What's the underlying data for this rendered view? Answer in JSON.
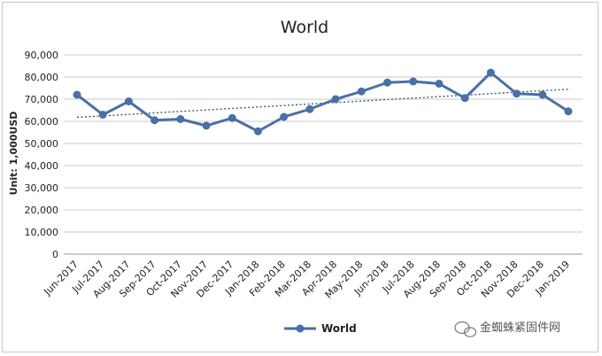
{
  "chart_data": {
    "type": "line",
    "title": "World",
    "ylabel": "Unit: 1,000USD",
    "xlabel": "",
    "ylim": [
      0,
      90000
    ],
    "yticks": [
      0,
      10000,
      20000,
      30000,
      40000,
      50000,
      60000,
      70000,
      80000,
      90000
    ],
    "ytick_labels": [
      "0",
      "10,000",
      "20,000",
      "30,000",
      "40,000",
      "50,000",
      "60,000",
      "70,000",
      "80,000",
      "90,000"
    ],
    "categories": [
      "Jun-2017",
      "Jul-2017",
      "Aug-2017",
      "Sep-2017",
      "Oct-2017",
      "Nov-2017",
      "Dec-2017",
      "Jan-2018",
      "Feb-2018",
      "Mar-2018",
      "Apr-2018",
      "May-2018",
      "Jun-2018",
      "Jul-2018",
      "Aug-2018",
      "Sep-2018",
      "Oct-2018",
      "Nov-2018",
      "Dec-2018",
      "Jan-2019"
    ],
    "series": [
      {
        "name": "World",
        "color": "#4a6fa5",
        "values": [
          72000,
          63000,
          69000,
          60500,
          61000,
          58000,
          61500,
          55500,
          62000,
          65500,
          70000,
          73500,
          77500,
          78000,
          77000,
          70500,
          82000,
          72500,
          72000,
          64500
        ]
      }
    ],
    "trendline": {
      "style": "dotted",
      "color": "#3a6070",
      "start": 61800,
      "end": 74500
    },
    "grid": "horizontal",
    "legend": "bottom"
  },
  "watermark": {
    "text": "金蜘蛛紧固件网"
  }
}
